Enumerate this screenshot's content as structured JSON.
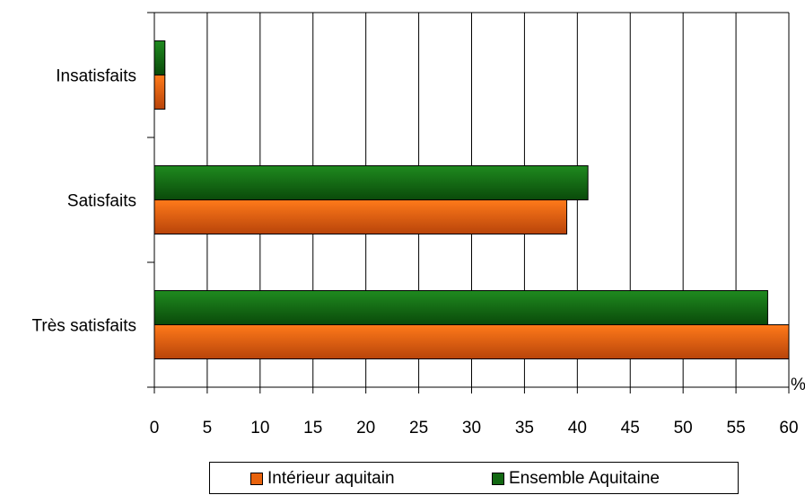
{
  "chart_data": {
    "type": "bar",
    "orientation": "horizontal",
    "categories": [
      "Insatisfaits",
      "Satisfaits",
      "Très satisfaits"
    ],
    "series": [
      {
        "name": "Intérieur aquitain",
        "values": [
          1,
          39,
          60
        ],
        "color": "#e8620c"
      },
      {
        "name": "Ensemble Aquitaine",
        "values": [
          1,
          41,
          58
        ],
        "color": "#126812"
      }
    ],
    "xlim": [
      0,
      60
    ],
    "xticks": [
      0,
      5,
      10,
      15,
      20,
      25,
      30,
      35,
      40,
      45,
      50,
      55,
      60
    ],
    "x_unit": "%",
    "grid": true,
    "legend_position": "bottom"
  }
}
